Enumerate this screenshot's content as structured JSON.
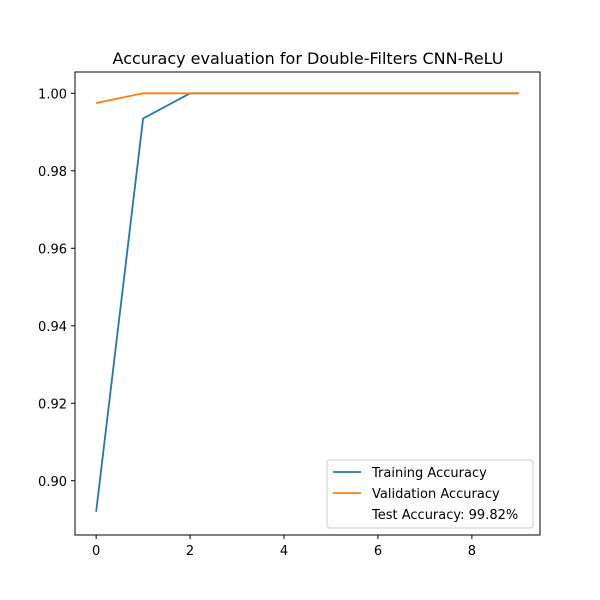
{
  "chart_data": {
    "type": "line",
    "title": "Accuracy evaluation for Double-Filters CNN-ReLU",
    "xlabel": "",
    "ylabel": "",
    "xlim": [
      -0.45,
      9.45
    ],
    "ylim": [
      0.886,
      1.0055
    ],
    "xticks": [
      0,
      2,
      4,
      6,
      8
    ],
    "xtick_labels": [
      "0",
      "2",
      "4",
      "6",
      "8"
    ],
    "yticks": [
      0.9,
      0.92,
      0.94,
      0.96,
      0.98,
      1.0
    ],
    "ytick_labels": [
      "0.90",
      "0.92",
      "0.94",
      "0.96",
      "0.98",
      "1.00"
    ],
    "grid": false,
    "legend_position": "bottom-right",
    "x": [
      0,
      1,
      2,
      3,
      4,
      5,
      6,
      7,
      8,
      9
    ],
    "series": [
      {
        "name": "Training Accuracy",
        "color": "#1f77b4",
        "values": [
          0.892,
          0.9935,
          1.0,
          1.0,
          1.0,
          1.0,
          1.0,
          1.0,
          1.0,
          1.0
        ]
      },
      {
        "name": "Validation Accuracy",
        "color": "#ff7f0e",
        "values": [
          0.9975,
          1.0,
          1.0,
          1.0,
          1.0,
          1.0,
          1.0,
          1.0,
          1.0,
          1.0
        ]
      }
    ],
    "legend_extra": "Test Accuracy: 99.82%"
  }
}
